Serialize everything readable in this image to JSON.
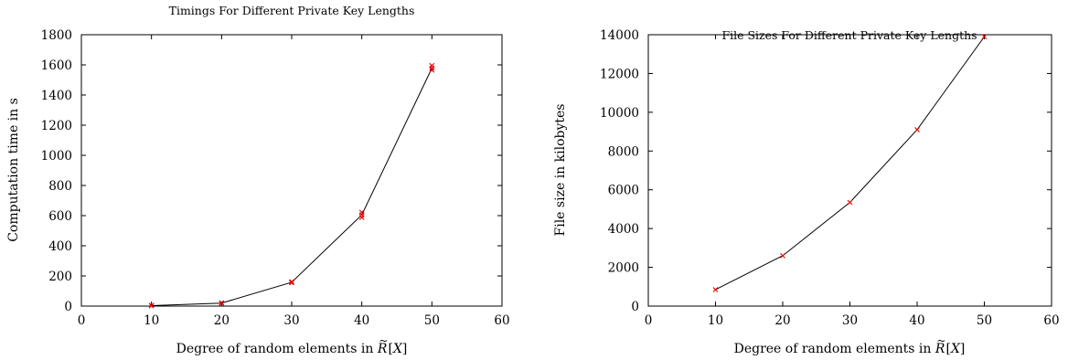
{
  "chart_data": [
    {
      "type": "line",
      "title": "Timings For Different Private Key Lengths",
      "xlabel": "Degree of random elements in R̃[X]",
      "ylabel": "Computation time in s",
      "xlim": [
        0,
        60
      ],
      "ylim": [
        0,
        1800
      ],
      "xticks": [
        0,
        10,
        20,
        30,
        40,
        50,
        60
      ],
      "yticks": [
        0,
        200,
        400,
        600,
        800,
        1000,
        1200,
        1400,
        1600,
        1800
      ],
      "grid": false,
      "series": [
        {
          "line_x": [
            10,
            20,
            30,
            40,
            50
          ],
          "line_y": [
            3,
            20,
            158,
            605,
            1578
          ]
        }
      ],
      "samples": {
        "x": [
          10,
          10,
          10,
          20,
          20,
          20,
          30,
          30,
          30,
          40,
          40,
          40,
          50,
          50,
          50
        ],
        "y": [
          2,
          3,
          4,
          19,
          20,
          21,
          155,
          158,
          161,
          588,
          605,
          622,
          1565,
          1578,
          1595
        ]
      },
      "colors": {
        "line": "#000000",
        "marker": "#e00000"
      }
    },
    {
      "type": "line",
      "title": "File Sizes For Different Private Key Lengths",
      "xlabel": "Degree of random elements in R̃[X]",
      "ylabel": "File size in kilobytes",
      "xlim": [
        0,
        60
      ],
      "ylim": [
        0,
        14000
      ],
      "xticks": [
        0,
        10,
        20,
        30,
        40,
        50,
        60
      ],
      "yticks": [
        0,
        2000,
        4000,
        6000,
        8000,
        10000,
        12000,
        14000
      ],
      "grid": false,
      "series": [
        {
          "line_x": [
            10,
            20,
            30,
            40,
            50
          ],
          "line_y": [
            850,
            2600,
            5350,
            9100,
            13900
          ]
        }
      ],
      "samples": {
        "x": [
          10,
          20,
          30,
          40,
          50
        ],
        "y": [
          850,
          2600,
          5350,
          9100,
          13900
        ]
      },
      "colors": {
        "line": "#000000",
        "marker": "#e00000"
      }
    }
  ]
}
